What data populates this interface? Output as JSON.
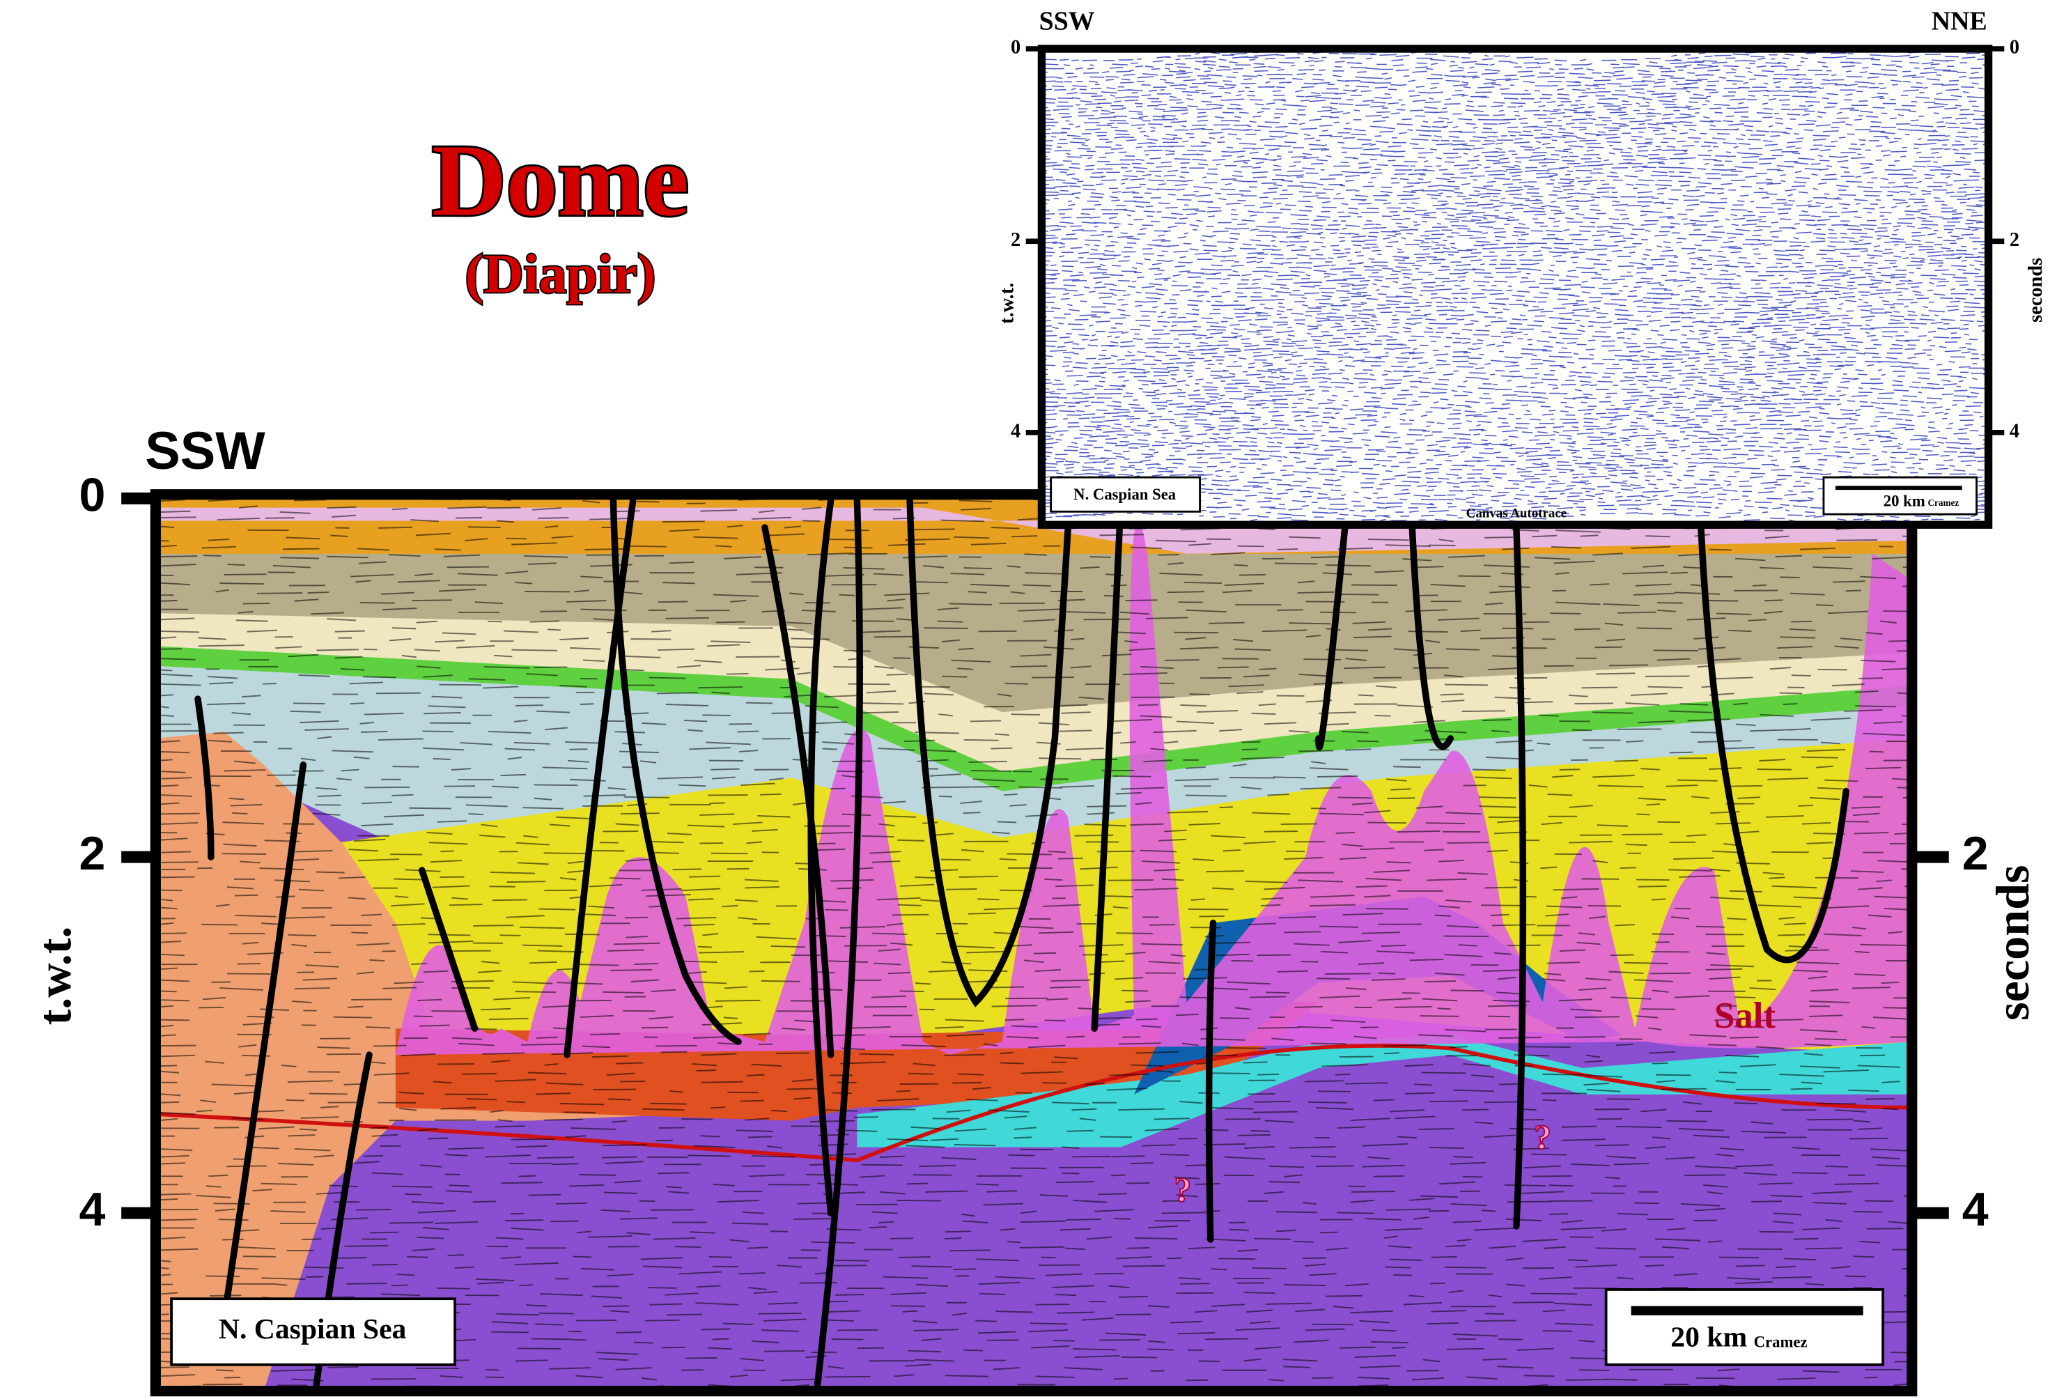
{
  "header": {
    "title": "Dome",
    "subtitle": "(Diapir)"
  },
  "section": {
    "direction_left": "SSW",
    "axis_left_label": "t.w.t.",
    "axis_right_label": "seconds",
    "ticks": [
      0,
      2,
      4
    ],
    "location": "N. Caspian Sea",
    "scale": "20 km",
    "credit": "Cramez",
    "annotations": {
      "salt": "Salt",
      "question_1": "?",
      "question_2": "?"
    }
  },
  "inset": {
    "direction_left": "SSW",
    "direction_right": "NNE",
    "axis_left_label": "t.w.t.",
    "axis_right_label": "seconds",
    "ticks": [
      0,
      2,
      4
    ],
    "location": "N. Caspian Sea",
    "scale": "20 km",
    "credit": "Cramez",
    "footer": "Canvas Autotrace"
  }
}
